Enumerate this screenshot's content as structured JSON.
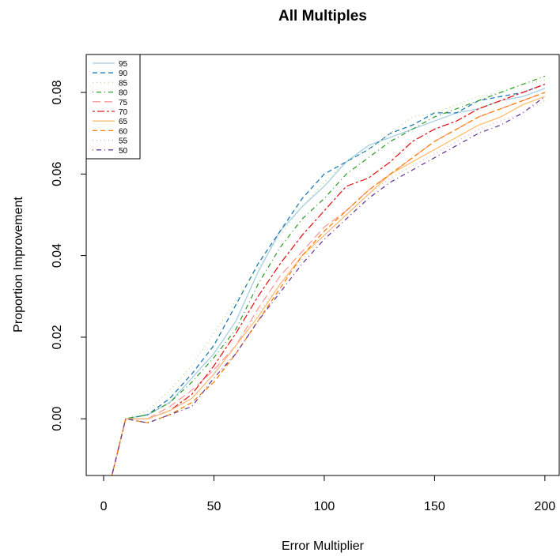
{
  "chart_data": {
    "type": "line",
    "title": "All Multiples",
    "x_label": "Error Multiplier",
    "y_label": "Proportion Improvement",
    "x": [
      1,
      10,
      20,
      30,
      40,
      50,
      60,
      70,
      80,
      90,
      100,
      110,
      120,
      130,
      140,
      150,
      160,
      170,
      180,
      190,
      200
    ],
    "series": [
      {
        "name": "95",
        "color": "#a6cee3",
        "values": [
          -0.02,
          0,
          0.001,
          0.004,
          0.01,
          0.016,
          0.024,
          0.036,
          0.046,
          0.052,
          0.057,
          0.063,
          0.067,
          0.069,
          0.071,
          0.073,
          0.075,
          0.076,
          0.078,
          0.079,
          0.081
        ]
      },
      {
        "name": "90",
        "color": "#1f78b4",
        "values": [
          -0.02,
          0,
          0.001,
          0.005,
          0.011,
          0.018,
          0.028,
          0.038,
          0.046,
          0.054,
          0.06,
          0.063,
          0.066,
          0.07,
          0.072,
          0.075,
          0.075,
          0.078,
          0.079,
          0.08,
          0.082
        ]
      },
      {
        "name": "85",
        "color": "#b2df8a",
        "values": [
          -0.02,
          0,
          0.002,
          0.007,
          0.013,
          0.021,
          0.029,
          0.037,
          0.045,
          0.052,
          0.058,
          0.063,
          0.066,
          0.07,
          0.074,
          0.075,
          0.077,
          0.079,
          0.08,
          0.082,
          0.083
        ]
      },
      {
        "name": "80",
        "color": "#33a02c",
        "values": [
          -0.02,
          0,
          0.001,
          0.004,
          0.009,
          0.015,
          0.022,
          0.033,
          0.042,
          0.049,
          0.054,
          0.06,
          0.064,
          0.068,
          0.071,
          0.074,
          0.076,
          0.078,
          0.08,
          0.082,
          0.084
        ]
      },
      {
        "name": "75",
        "color": "#fb9a99",
        "values": [
          -0.02,
          0,
          0,
          0.003,
          0.007,
          0.012,
          0.018,
          0.027,
          0.035,
          0.041,
          0.047,
          0.051,
          0.056,
          0.06,
          0.064,
          0.068,
          0.071,
          0.074,
          0.076,
          0.078,
          0.08
        ]
      },
      {
        "name": "70",
        "color": "#e31a1c",
        "values": [
          -0.02,
          0,
          0,
          0.002,
          0.006,
          0.013,
          0.021,
          0.03,
          0.038,
          0.045,
          0.051,
          0.057,
          0.059,
          0.063,
          0.068,
          0.071,
          0.073,
          0.076,
          0.078,
          0.08,
          0.082
        ]
      },
      {
        "name": "65",
        "color": "#fdbf6f",
        "values": [
          -0.02,
          0,
          0,
          0.002,
          0.005,
          0.011,
          0.018,
          0.025,
          0.033,
          0.04,
          0.045,
          0.05,
          0.055,
          0.06,
          0.063,
          0.066,
          0.069,
          0.072,
          0.074,
          0.077,
          0.079
        ]
      },
      {
        "name": "60",
        "color": "#ff7f00",
        "values": [
          -0.02,
          0,
          -0.001,
          0.001,
          0.004,
          0.009,
          0.016,
          0.024,
          0.032,
          0.04,
          0.046,
          0.051,
          0.056,
          0.06,
          0.064,
          0.068,
          0.071,
          0.074,
          0.076,
          0.078,
          0.08
        ]
      },
      {
        "name": "55",
        "color": "#cab2d6",
        "values": [
          -0.02,
          0,
          0,
          0.002,
          0.005,
          0.011,
          0.018,
          0.026,
          0.033,
          0.039,
          0.045,
          0.05,
          0.055,
          0.059,
          0.062,
          0.065,
          0.068,
          0.071,
          0.073,
          0.075,
          0.078
        ]
      },
      {
        "name": "50",
        "color": "#6a3d9a",
        "values": [
          -0.02,
          0,
          -0.001,
          0.001,
          0.003,
          0.01,
          0.016,
          0.024,
          0.031,
          0.038,
          0.044,
          0.049,
          0.054,
          0.058,
          0.061,
          0.064,
          0.067,
          0.07,
          0.072,
          0.075,
          0.079
        ]
      }
    ],
    "xlim": [
      -7.9,
      206.5
    ],
    "xticks": [
      0,
      50,
      100,
      150,
      200
    ],
    "ylim": [
      -0.0139,
      0.0893
    ],
    "yticks": [
      {
        "value": 0,
        "label": "0.00"
      },
      {
        "value": 0.02,
        "label": "0.02"
      },
      {
        "value": 0.04,
        "label": "0.04"
      },
      {
        "value": 0.06,
        "label": "0.06"
      },
      {
        "value": 0.08,
        "label": "0.08"
      }
    ],
    "legend": "top-left"
  }
}
